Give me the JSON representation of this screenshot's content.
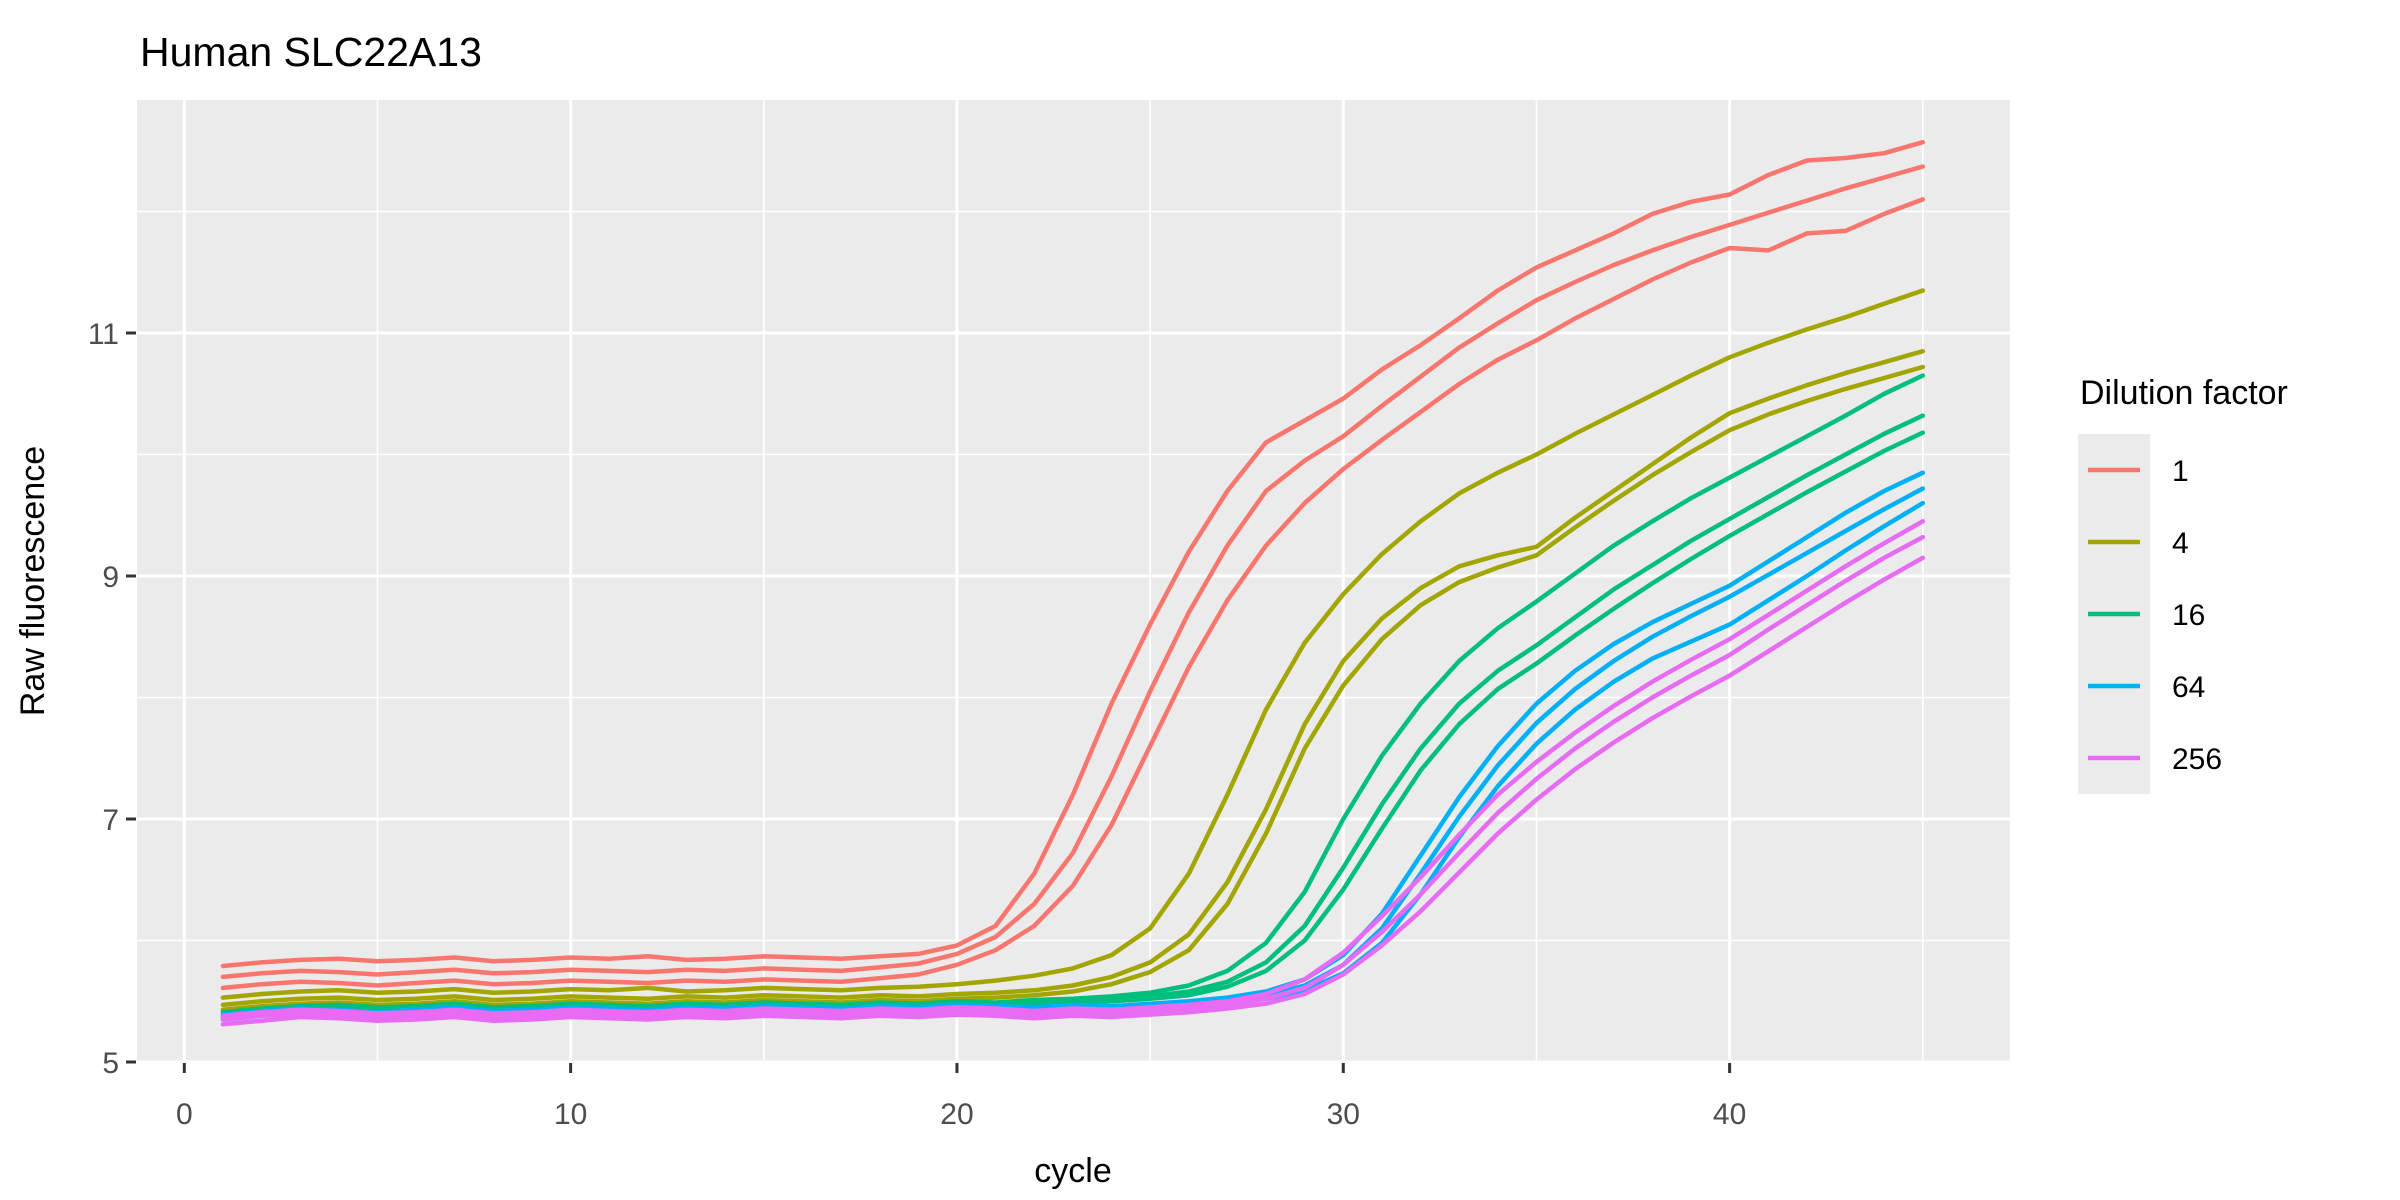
{
  "chart_data": {
    "type": "line",
    "title": "Human SLC22A13",
    "xlabel": "cycle",
    "ylabel": "Raw fluorescence",
    "x_ticks": [
      0,
      10,
      20,
      30,
      40
    ],
    "x_minor_ticks": [
      5,
      15,
      25,
      35,
      45
    ],
    "y_ticks": [
      5,
      7,
      9,
      11
    ],
    "y_minor_ticks": [
      6,
      8,
      10,
      12
    ],
    "xlim": [
      -1.2,
      47.3
    ],
    "ylim": [
      5.0,
      12.92
    ],
    "grid": "white major and minor gridlines on grey panel",
    "panel_bg": "#EBEBEB",
    "legend": {
      "title": "Dilution factor",
      "position": "right",
      "entries": [
        {
          "label": "1",
          "color": "#F8766D"
        },
        {
          "label": "4",
          "color": "#A3A500"
        },
        {
          "label": "16",
          "color": "#00BF7D"
        },
        {
          "label": "64",
          "color": "#00B0F6"
        },
        {
          "label": "256",
          "color": "#E76BF3"
        }
      ]
    },
    "cycles": [
      1,
      2,
      3,
      4,
      5,
      6,
      7,
      8,
      9,
      10,
      11,
      12,
      13,
      14,
      15,
      16,
      17,
      18,
      19,
      20,
      21,
      22,
      23,
      24,
      25,
      26,
      27,
      28,
      29,
      30,
      31,
      32,
      33,
      34,
      35,
      36,
      37,
      38,
      39,
      40,
      41,
      42,
      43,
      44,
      45
    ],
    "series": [
      {
        "name": "dilution 1 rep A",
        "dilution": "1",
        "color": "#F8766D",
        "values": [
          5.79,
          5.82,
          5.84,
          5.85,
          5.83,
          5.84,
          5.86,
          5.83,
          5.84,
          5.86,
          5.85,
          5.87,
          5.84,
          5.85,
          5.87,
          5.86,
          5.85,
          5.87,
          5.89,
          5.96,
          6.12,
          6.55,
          7.2,
          7.95,
          8.6,
          9.2,
          9.7,
          10.1,
          10.28,
          10.46,
          10.7,
          10.9,
          11.12,
          11.35,
          11.54,
          11.68,
          11.82,
          11.98,
          12.08,
          12.14,
          12.3,
          12.42,
          12.44,
          12.48,
          12.57
        ]
      },
      {
        "name": "dilution 1 rep B",
        "dilution": "1",
        "color": "#F8766D",
        "values": [
          5.7,
          5.73,
          5.75,
          5.74,
          5.72,
          5.74,
          5.76,
          5.73,
          5.74,
          5.76,
          5.75,
          5.74,
          5.76,
          5.75,
          5.77,
          5.76,
          5.75,
          5.78,
          5.81,
          5.89,
          6.03,
          6.3,
          6.72,
          7.35,
          8.05,
          8.7,
          9.25,
          9.7,
          9.95,
          10.15,
          10.4,
          10.64,
          10.88,
          11.08,
          11.27,
          11.42,
          11.56,
          11.68,
          11.79,
          11.89,
          11.99,
          12.09,
          12.19,
          12.28,
          12.37
        ]
      },
      {
        "name": "dilution 1 rep C",
        "dilution": "1",
        "color": "#F8766D",
        "values": [
          5.61,
          5.64,
          5.66,
          5.65,
          5.63,
          5.65,
          5.67,
          5.64,
          5.65,
          5.67,
          5.66,
          5.65,
          5.67,
          5.66,
          5.68,
          5.67,
          5.66,
          5.69,
          5.72,
          5.8,
          5.92,
          6.12,
          6.45,
          6.95,
          7.6,
          8.25,
          8.8,
          9.25,
          9.6,
          9.88,
          10.12,
          10.35,
          10.58,
          10.78,
          10.94,
          11.12,
          11.28,
          11.44,
          11.58,
          11.7,
          11.68,
          11.82,
          11.84,
          11.98,
          12.1
        ]
      },
      {
        "name": "dilution 4 rep A",
        "dilution": "4",
        "color": "#A3A500",
        "values": [
          5.53,
          5.56,
          5.58,
          5.59,
          5.57,
          5.58,
          5.6,
          5.57,
          5.58,
          5.6,
          5.59,
          5.61,
          5.58,
          5.59,
          5.61,
          5.6,
          5.59,
          5.61,
          5.62,
          5.64,
          5.67,
          5.71,
          5.77,
          5.88,
          6.1,
          6.55,
          7.2,
          7.9,
          8.45,
          8.85,
          9.18,
          9.45,
          9.68,
          9.85,
          10.0,
          10.17,
          10.33,
          10.49,
          10.65,
          10.8,
          10.92,
          11.03,
          11.13,
          11.24,
          11.35
        ]
      },
      {
        "name": "dilution 4 rep B",
        "dilution": "4",
        "color": "#A3A500",
        "values": [
          5.47,
          5.5,
          5.52,
          5.53,
          5.51,
          5.52,
          5.54,
          5.51,
          5.52,
          5.54,
          5.53,
          5.52,
          5.54,
          5.53,
          5.55,
          5.54,
          5.53,
          5.55,
          5.54,
          5.56,
          5.57,
          5.59,
          5.63,
          5.7,
          5.82,
          6.05,
          6.48,
          7.08,
          7.78,
          8.3,
          8.65,
          8.9,
          9.08,
          9.17,
          9.24,
          9.48,
          9.7,
          9.92,
          10.14,
          10.34,
          10.46,
          10.57,
          10.67,
          10.76,
          10.85
        ]
      },
      {
        "name": "dilution 4 rep C",
        "dilution": "4",
        "color": "#A3A500",
        "values": [
          5.43,
          5.46,
          5.48,
          5.49,
          5.47,
          5.48,
          5.5,
          5.47,
          5.48,
          5.5,
          5.49,
          5.48,
          5.5,
          5.49,
          5.51,
          5.5,
          5.49,
          5.51,
          5.5,
          5.52,
          5.53,
          5.55,
          5.58,
          5.64,
          5.74,
          5.92,
          6.3,
          6.88,
          7.58,
          8.1,
          8.48,
          8.76,
          8.95,
          9.07,
          9.17,
          9.4,
          9.62,
          9.83,
          10.02,
          10.2,
          10.33,
          10.44,
          10.54,
          10.63,
          10.72
        ]
      },
      {
        "name": "dilution 16 rep A",
        "dilution": "16",
        "color": "#00BF7D",
        "values": [
          5.41,
          5.44,
          5.46,
          5.47,
          5.45,
          5.46,
          5.48,
          5.45,
          5.46,
          5.48,
          5.47,
          5.46,
          5.48,
          5.47,
          5.49,
          5.48,
          5.47,
          5.49,
          5.48,
          5.5,
          5.49,
          5.51,
          5.52,
          5.54,
          5.57,
          5.63,
          5.75,
          5.98,
          6.4,
          7.0,
          7.52,
          7.95,
          8.3,
          8.57,
          8.79,
          9.02,
          9.25,
          9.45,
          9.64,
          9.81,
          9.98,
          10.15,
          10.32,
          10.5,
          10.65
        ]
      },
      {
        "name": "dilution 16 rep B",
        "dilution": "16",
        "color": "#00BF7D",
        "values": [
          5.39,
          5.42,
          5.44,
          5.45,
          5.43,
          5.44,
          5.46,
          5.43,
          5.44,
          5.46,
          5.45,
          5.44,
          5.46,
          5.45,
          5.47,
          5.46,
          5.45,
          5.47,
          5.46,
          5.48,
          5.47,
          5.49,
          5.5,
          5.52,
          5.54,
          5.58,
          5.66,
          5.82,
          6.12,
          6.6,
          7.12,
          7.58,
          7.95,
          8.22,
          8.43,
          8.66,
          8.89,
          9.09,
          9.29,
          9.47,
          9.65,
          9.83,
          10.0,
          10.17,
          10.32
        ]
      },
      {
        "name": "dilution 16 rep C",
        "dilution": "16",
        "color": "#00BF7D",
        "values": [
          5.37,
          5.4,
          5.42,
          5.43,
          5.41,
          5.42,
          5.44,
          5.41,
          5.42,
          5.44,
          5.43,
          5.42,
          5.44,
          5.43,
          5.45,
          5.44,
          5.43,
          5.45,
          5.44,
          5.46,
          5.45,
          5.47,
          5.48,
          5.5,
          5.52,
          5.55,
          5.62,
          5.75,
          6.0,
          6.42,
          6.92,
          7.4,
          7.78,
          8.07,
          8.28,
          8.51,
          8.73,
          8.94,
          9.14,
          9.33,
          9.51,
          9.69,
          9.86,
          10.03,
          10.18
        ]
      },
      {
        "name": "dilution 64 rep A",
        "dilution": "64",
        "color": "#00B0F6",
        "values": [
          5.39,
          5.42,
          5.44,
          5.43,
          5.41,
          5.43,
          5.45,
          5.42,
          5.43,
          5.45,
          5.44,
          5.43,
          5.45,
          5.44,
          5.46,
          5.45,
          5.44,
          5.46,
          5.45,
          5.47,
          5.46,
          5.45,
          5.47,
          5.46,
          5.48,
          5.5,
          5.53,
          5.58,
          5.68,
          5.88,
          6.22,
          6.7,
          7.18,
          7.6,
          7.95,
          8.22,
          8.44,
          8.62,
          8.77,
          8.92,
          9.12,
          9.32,
          9.52,
          9.7,
          9.85
        ]
      },
      {
        "name": "dilution 64 rep B",
        "dilution": "64",
        "color": "#00B0F6",
        "values": [
          5.37,
          5.4,
          5.42,
          5.41,
          5.39,
          5.41,
          5.43,
          5.4,
          5.41,
          5.43,
          5.42,
          5.41,
          5.43,
          5.42,
          5.44,
          5.43,
          5.42,
          5.44,
          5.43,
          5.45,
          5.44,
          5.43,
          5.45,
          5.44,
          5.46,
          5.48,
          5.51,
          5.55,
          5.63,
          5.8,
          6.1,
          6.55,
          7.02,
          7.44,
          7.79,
          8.07,
          8.3,
          8.5,
          8.67,
          8.83,
          9.01,
          9.19,
          9.37,
          9.55,
          9.72
        ]
      },
      {
        "name": "dilution 64 rep C",
        "dilution": "64",
        "color": "#00B0F6",
        "values": [
          5.35,
          5.38,
          5.4,
          5.39,
          5.37,
          5.39,
          5.41,
          5.38,
          5.39,
          5.41,
          5.4,
          5.39,
          5.41,
          5.4,
          5.42,
          5.41,
          5.4,
          5.42,
          5.41,
          5.43,
          5.42,
          5.41,
          5.43,
          5.42,
          5.44,
          5.46,
          5.48,
          5.52,
          5.59,
          5.73,
          5.98,
          6.38,
          6.85,
          7.27,
          7.62,
          7.9,
          8.13,
          8.32,
          8.46,
          8.6,
          8.8,
          9.0,
          9.21,
          9.41,
          9.6
        ]
      },
      {
        "name": "dilution 256 rep A",
        "dilution": "256",
        "color": "#E76BF3",
        "values": [
          5.38,
          5.41,
          5.43,
          5.42,
          5.4,
          5.41,
          5.43,
          5.4,
          5.41,
          5.43,
          5.42,
          5.41,
          5.43,
          5.42,
          5.44,
          5.43,
          5.42,
          5.44,
          5.43,
          5.45,
          5.44,
          5.42,
          5.44,
          5.43,
          5.45,
          5.47,
          5.5,
          5.56,
          5.68,
          5.9,
          6.2,
          6.52,
          6.87,
          7.2,
          7.47,
          7.71,
          7.93,
          8.13,
          8.31,
          8.48,
          8.68,
          8.88,
          9.08,
          9.27,
          9.45
        ]
      },
      {
        "name": "dilution 256 rep B",
        "dilution": "256",
        "color": "#E76BF3",
        "values": [
          5.35,
          5.38,
          5.4,
          5.39,
          5.37,
          5.38,
          5.4,
          5.37,
          5.38,
          5.4,
          5.39,
          5.38,
          5.4,
          5.39,
          5.41,
          5.4,
          5.39,
          5.41,
          5.4,
          5.42,
          5.41,
          5.39,
          5.41,
          5.4,
          5.42,
          5.44,
          5.47,
          5.52,
          5.61,
          5.8,
          6.07,
          6.38,
          6.72,
          7.05,
          7.33,
          7.58,
          7.8,
          8.0,
          8.18,
          8.35,
          8.56,
          8.76,
          8.96,
          9.15,
          9.32
        ]
      },
      {
        "name": "dilution 256 rep C",
        "dilution": "256",
        "color": "#E76BF3",
        "values": [
          5.31,
          5.34,
          5.37,
          5.36,
          5.34,
          5.35,
          5.37,
          5.34,
          5.35,
          5.37,
          5.36,
          5.35,
          5.37,
          5.36,
          5.38,
          5.37,
          5.36,
          5.38,
          5.37,
          5.39,
          5.38,
          5.36,
          5.38,
          5.37,
          5.39,
          5.41,
          5.44,
          5.48,
          5.56,
          5.72,
          5.96,
          6.24,
          6.56,
          6.88,
          7.16,
          7.41,
          7.63,
          7.83,
          8.01,
          8.18,
          8.38,
          8.58,
          8.78,
          8.97,
          9.15
        ]
      }
    ]
  },
  "colors": {
    "panel_bg": "#EBEBEB",
    "gridline": "#FFFFFF",
    "tick_label": "#4D4D4D",
    "tick_mark": "#333333",
    "text": "#000000",
    "background": "#FFFFFF"
  }
}
